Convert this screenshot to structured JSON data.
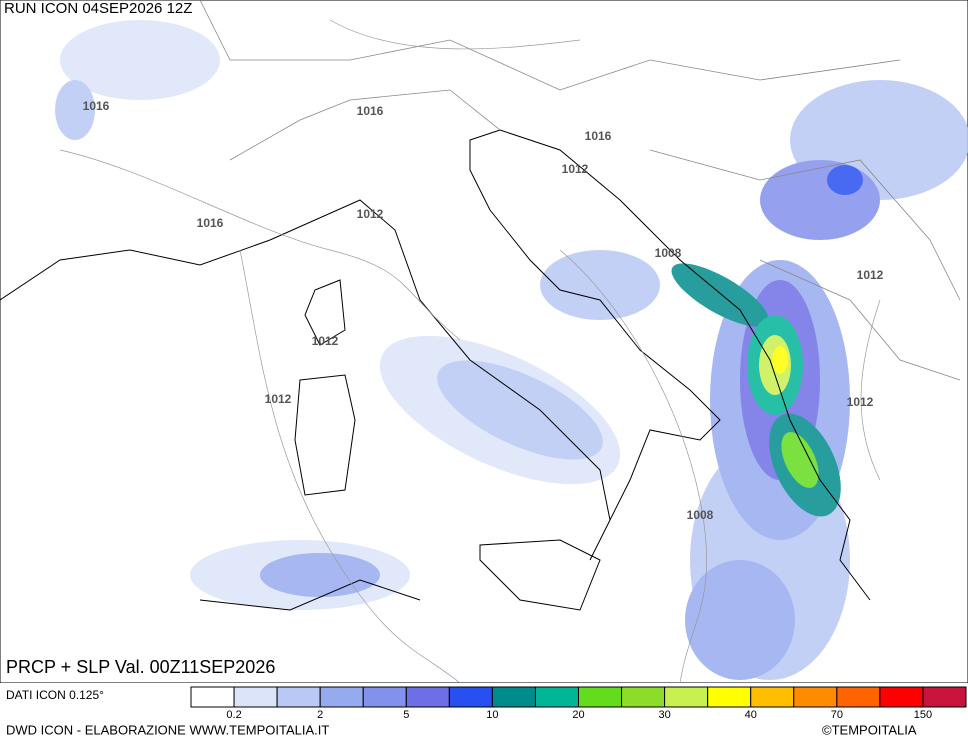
{
  "header": {
    "run": "RUN ICON 04SEP2026 12Z",
    "title": "PRCP + SLP Val. 00Z11SEP2026"
  },
  "isobar_labels": [
    "1016",
    "1016",
    "1016",
    "1016",
    "1012",
    "1012",
    "1012",
    "1012",
    "1012",
    "1012",
    "1008",
    "1008"
  ],
  "footer": {
    "source": "DATI ICON 0.125°",
    "credit": "DWD ICON - ELABORAZIONE WWW.TEMPOITALIA.IT",
    "logo": "©TEMPOITALIA"
  },
  "colorbar": {
    "colors": [
      "#ffffff",
      "#dce4fa",
      "#b9c8f5",
      "#96aaf0",
      "#8291eb",
      "#6e6ee6",
      "#2850f0",
      "#008c8c",
      "#00b496",
      "#64dc1e",
      "#8cdc28",
      "#c8f050",
      "#ffff00",
      "#ffbe00",
      "#ff8c00",
      "#ff6400",
      "#ff0000",
      "#c8143c"
    ],
    "labels": [
      "0.2",
      "2",
      "5",
      "10",
      "20",
      "30",
      "40",
      "70",
      "150"
    ]
  }
}
